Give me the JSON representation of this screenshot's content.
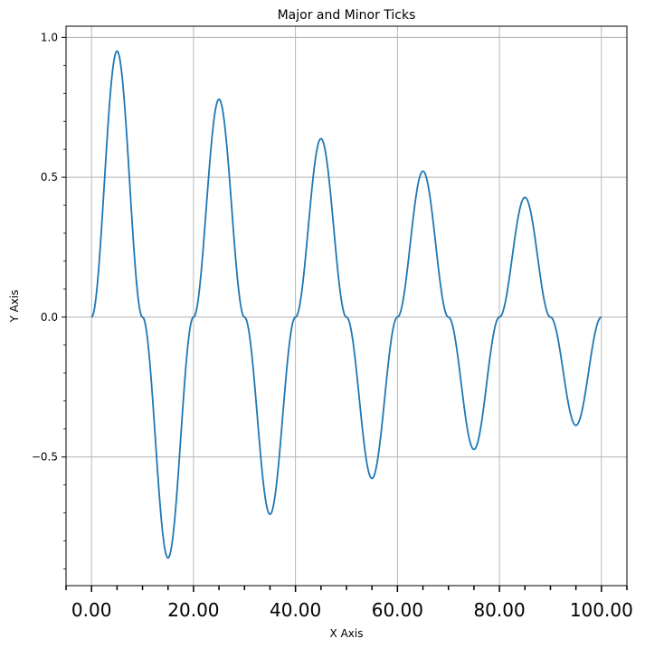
{
  "chart_data": {
    "type": "line",
    "title": "Major and Minor Ticks",
    "xlabel": "X Axis",
    "ylabel": "Y Axis",
    "xlim": [
      -5,
      105
    ],
    "ylim": [
      -0.96,
      1.04
    ],
    "grid": true,
    "x_major_ticks": [
      0,
      20,
      40,
      60,
      80,
      100
    ],
    "x_tick_labels": [
      "0.00",
      "20.00",
      "40.00",
      "60.00",
      "80.00",
      "100.00"
    ],
    "x_minor_ticks": [
      -5,
      5,
      10,
      15,
      25,
      30,
      35,
      45,
      50,
      55,
      65,
      70,
      75,
      85,
      90,
      95,
      105
    ],
    "y_major_ticks": [
      -0.5,
      0.0,
      0.5,
      1.0
    ],
    "y_tick_labels": [
      "−0.5",
      "0.0",
      "0.5",
      "1.0"
    ],
    "y_minor_ticks": [
      -0.9,
      -0.8,
      -0.7,
      -0.6,
      -0.4,
      -0.3,
      -0.2,
      -0.1,
      0.1,
      0.2,
      0.3,
      0.4,
      0.6,
      0.7,
      0.8,
      0.9
    ],
    "series": [
      {
        "color": "#1f77b4",
        "x": [
          0,
          5,
          10,
          15,
          20,
          25,
          30,
          35,
          40,
          45,
          50,
          55,
          60,
          65,
          70,
          75,
          80,
          85,
          90,
          95,
          100
        ],
        "y": [
          0,
          0.951,
          0,
          -0.861,
          0,
          0.779,
          0,
          -0.705,
          0,
          0.638,
          0,
          -0.577,
          0,
          0.522,
          0,
          -0.473,
          0,
          0.428,
          0,
          -0.387,
          0
        ]
      }
    ]
  }
}
